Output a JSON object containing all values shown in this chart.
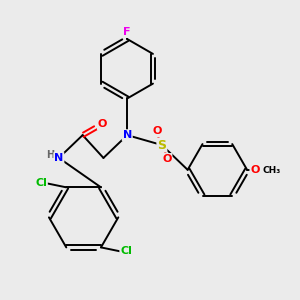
{
  "bg_color": "#ebebeb",
  "bond_color": "#000000",
  "bond_width": 1.4,
  "atom_colors": {
    "F": "#ee00ee",
    "N": "#0000ff",
    "O": "#ff0000",
    "S": "#bbbb00",
    "Cl": "#00bb00",
    "H": "#666666",
    "C": "#000000"
  },
  "figsize": [
    3.0,
    3.0
  ],
  "dpi": 100
}
